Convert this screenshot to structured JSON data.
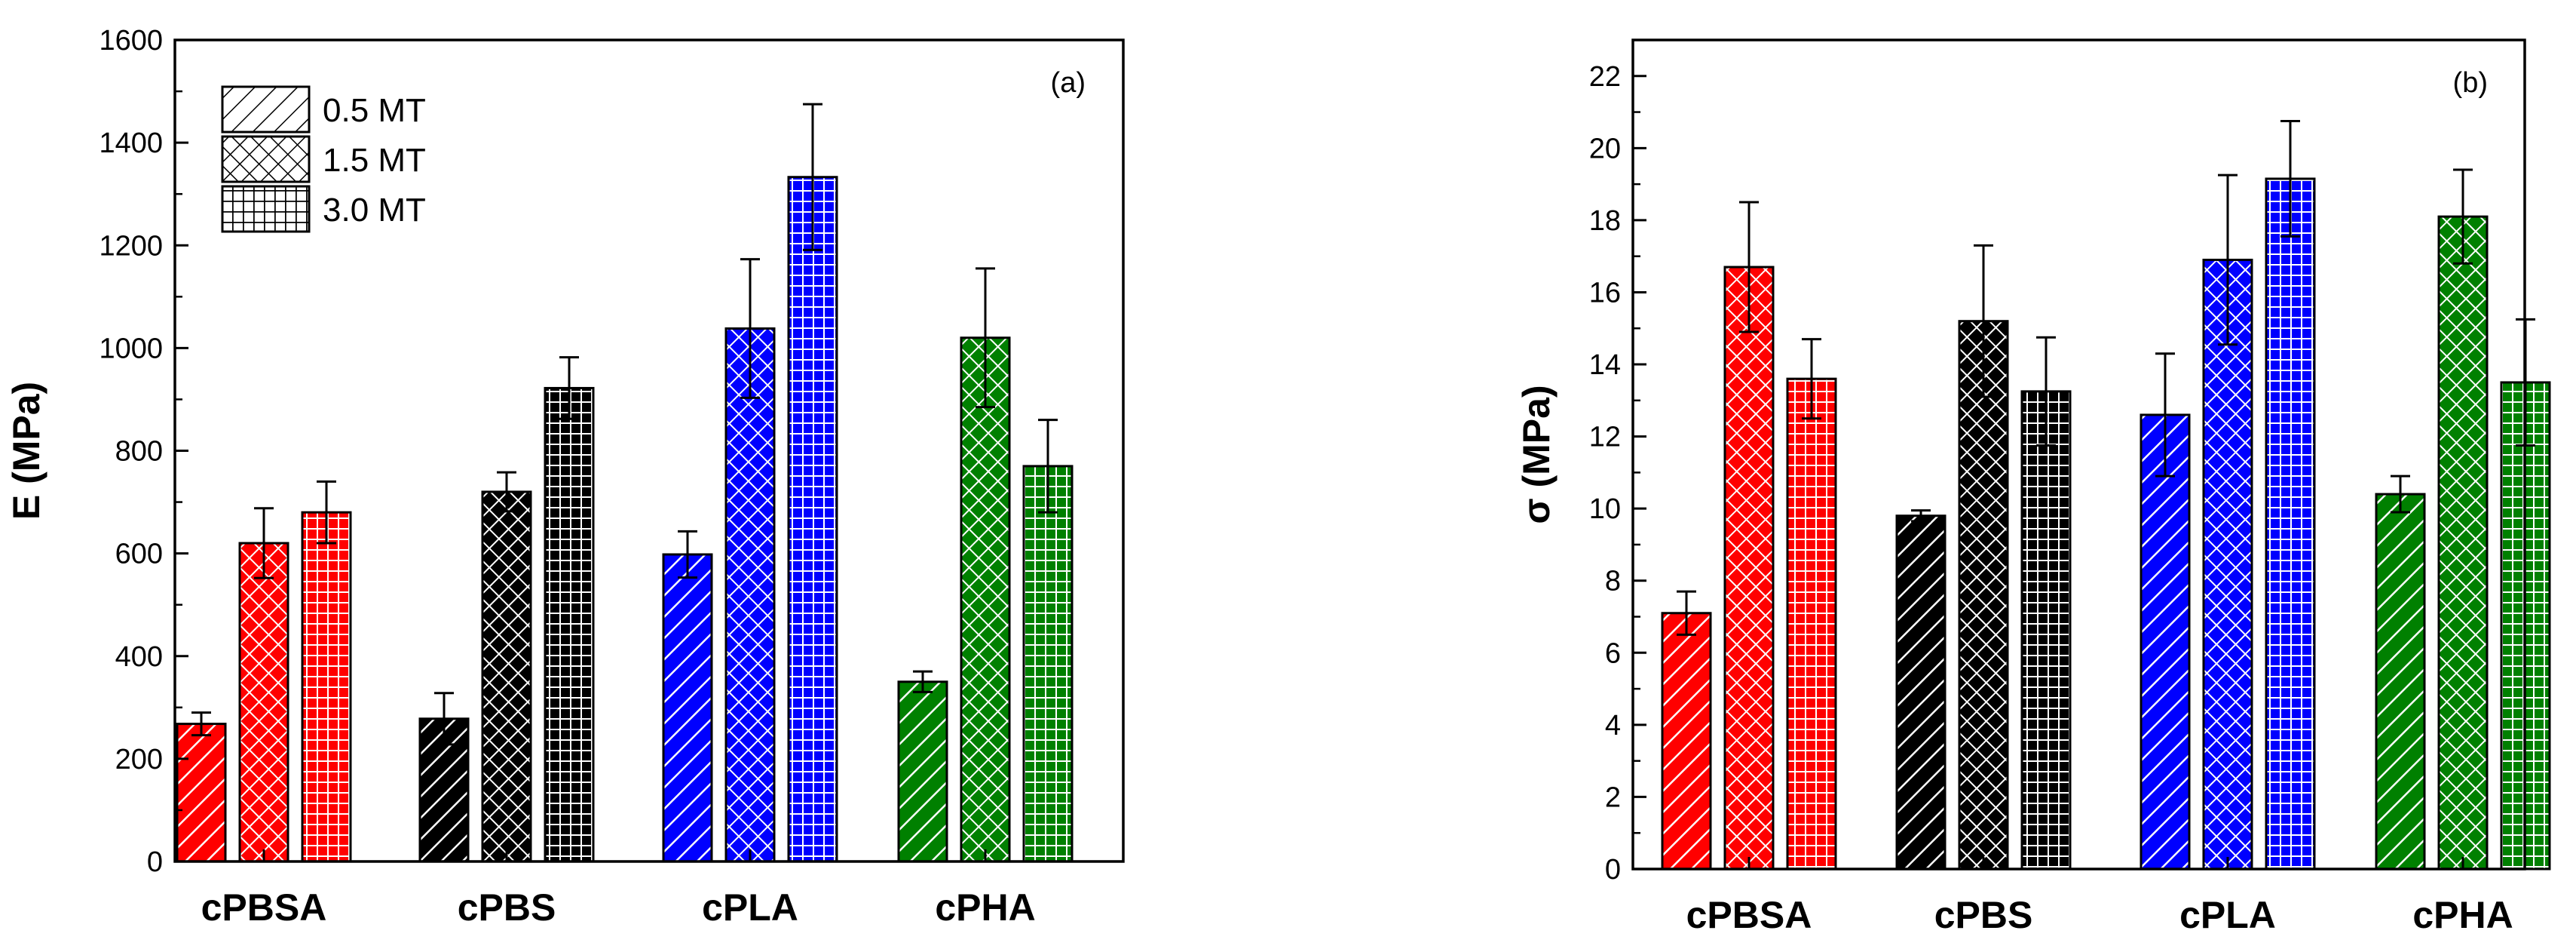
{
  "chart_data": [
    {
      "type": "bar",
      "panel_label": "(a)",
      "ylabel": "E (MPa)",
      "ylim": [
        0,
        1600
      ],
      "yticks": [
        0,
        200,
        400,
        600,
        800,
        1000,
        1200,
        1400,
        1600
      ],
      "categories": [
        "cPBSA",
        "cPBS",
        "cPLA",
        "cPHA"
      ],
      "category_colors": [
        "#ff0000",
        "#000000",
        "#0000ff",
        "#008000"
      ],
      "legend_position": "top-left",
      "series": [
        {
          "name": "0.5 MT",
          "pattern": "diagonal-hatch",
          "values": [
            268,
            278,
            598,
            350
          ],
          "errors": [
            22,
            50,
            45,
            20
          ]
        },
        {
          "name": "1.5 MT",
          "pattern": "cross-hatch",
          "values": [
            620,
            720,
            1038,
            1020
          ],
          "errors": [
            68,
            38,
            135,
            135
          ]
        },
        {
          "name": "3.0 MT",
          "pattern": "grid",
          "values": [
            680,
            922,
            1333,
            770
          ],
          "errors": [
            60,
            60,
            142,
            90
          ]
        }
      ]
    },
    {
      "type": "bar",
      "panel_label": "(b)",
      "ylabel": "σ (MPa)",
      "ylim": [
        0,
        23
      ],
      "yticks": [
        0,
        2,
        4,
        6,
        8,
        10,
        12,
        14,
        16,
        18,
        20,
        22
      ],
      "categories": [
        "cPBSA",
        "cPBS",
        "cPLA",
        "cPHA"
      ],
      "category_colors": [
        "#ff0000",
        "#000000",
        "#0000ff",
        "#008000"
      ],
      "series": [
        {
          "name": "0.5 MT",
          "pattern": "diagonal-hatch",
          "values": [
            7.1,
            9.8,
            12.6,
            10.4
          ],
          "errors": [
            0.6,
            0.15,
            1.7,
            0.5
          ]
        },
        {
          "name": "1.5 MT",
          "pattern": "cross-hatch",
          "values": [
            16.7,
            15.2,
            16.9,
            18.1
          ],
          "errors": [
            1.8,
            2.1,
            2.35,
            1.3
          ]
        },
        {
          "name": "3.0 MT",
          "pattern": "grid",
          "values": [
            13.6,
            13.25,
            19.15,
            13.5
          ],
          "errors": [
            1.1,
            1.5,
            1.6,
            1.75
          ]
        }
      ]
    }
  ]
}
